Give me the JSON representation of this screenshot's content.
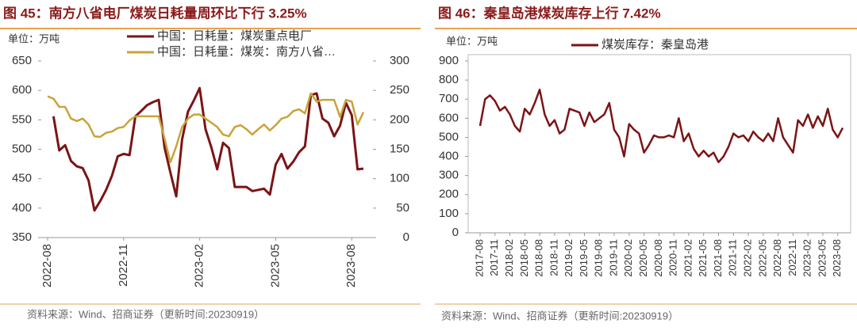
{
  "chart_data": [
    {
      "type": "line",
      "title": "图 45：南方八省电厂煤炭日耗量周环比下行 3.25%",
      "unit": "单位：万吨",
      "source": "资料来源：Wind、招商证券（更新时间:20230919）",
      "categories": [
        "2022-08",
        null,
        null,
        null,
        null,
        null,
        null,
        null,
        null,
        null,
        null,
        null,
        null,
        "2022-11",
        null,
        null,
        null,
        null,
        null,
        null,
        null,
        null,
        null,
        null,
        null,
        null,
        "2023-02",
        null,
        null,
        null,
        null,
        null,
        null,
        null,
        null,
        null,
        null,
        null,
        null,
        "2023-05",
        null,
        null,
        null,
        null,
        null,
        null,
        null,
        null,
        null,
        null,
        null,
        null,
        "2023-08",
        null,
        null
      ],
      "series": [
        {
          "name": "中国：日耗量：煤炭重点电厂",
          "color": "#7b1416",
          "values": [
            null,
            556,
            498,
            507,
            480,
            471,
            468,
            447,
            396,
            412,
            431,
            455,
            488,
            492,
            490,
            556,
            565,
            575,
            580,
            584,
            503,
            460,
            420,
            517,
            564,
            583,
            604,
            534,
            503,
            466,
            511,
            502,
            436,
            436,
            436,
            429,
            431,
            433,
            423,
            474,
            492,
            467,
            479,
            495,
            505,
            592,
            595,
            552,
            545,
            522,
            540,
            579,
            558,
            466,
            467
          ]
        },
        {
          "name": "中国：日耗量：煤炭：南方八省…",
          "color": "#c9a33a",
          "axis": "y2",
          "values": [
            240,
            236,
            222,
            222,
            202,
            198,
            202,
            192,
            172,
            171,
            178,
            180,
            186,
            188,
            199,
            206,
            206,
            206,
            206,
            206,
            168,
            128,
            155,
            188,
            202,
            209,
            209,
            202,
            195,
            188,
            175,
            172,
            188,
            191,
            184,
            175,
            184,
            192,
            182,
            191,
            202,
            205,
            215,
            218,
            211,
            245,
            231,
            234,
            234,
            234,
            205,
            234,
            231,
            192,
            213
          ]
        }
      ],
      "ylim": [
        350,
        650
      ],
      "yticks": [
        350,
        400,
        450,
        500,
        550,
        600,
        650
      ],
      "y2lim": [
        0,
        300
      ],
      "y2ticks": [
        0,
        50,
        100,
        150,
        200,
        250,
        300
      ]
    },
    {
      "type": "line",
      "title": "图 46：秦皇岛港煤炭库存上行 7.42%",
      "unit": "单位：万吨",
      "source": "资料来源：Wind、招商证券（更新时间:20230919）",
      "categories": [
        "2017-08",
        null,
        null,
        "2017-11",
        null,
        null,
        "2018-02",
        null,
        null,
        "2018-05",
        null,
        null,
        "2018-08",
        null,
        null,
        "2018-11",
        null,
        null,
        "2019-02",
        null,
        null,
        "2019-05",
        null,
        null,
        "2019-08",
        null,
        null,
        "2019-11",
        null,
        null,
        "2020-02",
        null,
        null,
        "2020-05",
        null,
        null,
        "2020-08",
        null,
        null,
        "2020-11",
        null,
        null,
        "2021-02",
        null,
        null,
        "2021-05",
        null,
        null,
        "2021-08",
        null,
        null,
        "2021-11",
        null,
        null,
        "2022-02",
        null,
        null,
        "2022-05",
        null,
        null,
        "2022-08",
        null,
        null,
        "2022-11",
        null,
        null,
        "2023-02",
        null,
        null,
        "2023-05",
        null,
        null,
        "2023-08",
        null
      ],
      "series": [
        {
          "name": "煤炭库存：秦皇岛港",
          "color": "#7b1416",
          "values": [
            560,
            700,
            720,
            690,
            640,
            660,
            620,
            560,
            530,
            650,
            620,
            680,
            750,
            620,
            560,
            590,
            520,
            540,
            650,
            640,
            630,
            560,
            630,
            580,
            600,
            620,
            680,
            540,
            500,
            400,
            570,
            540,
            520,
            420,
            460,
            510,
            500,
            500,
            510,
            500,
            600,
            480,
            520,
            440,
            400,
            430,
            400,
            420,
            370,
            400,
            450,
            520,
            500,
            510,
            480,
            530,
            500,
            480,
            520,
            480,
            600,
            500,
            460,
            420,
            590,
            560,
            620,
            550,
            610,
            560,
            650,
            540,
            500,
            550
          ]
        }
      ],
      "ylim": [
        0,
        900
      ],
      "yticks": [
        0,
        100,
        200,
        300,
        400,
        500,
        600,
        700,
        800,
        900
      ]
    }
  ]
}
